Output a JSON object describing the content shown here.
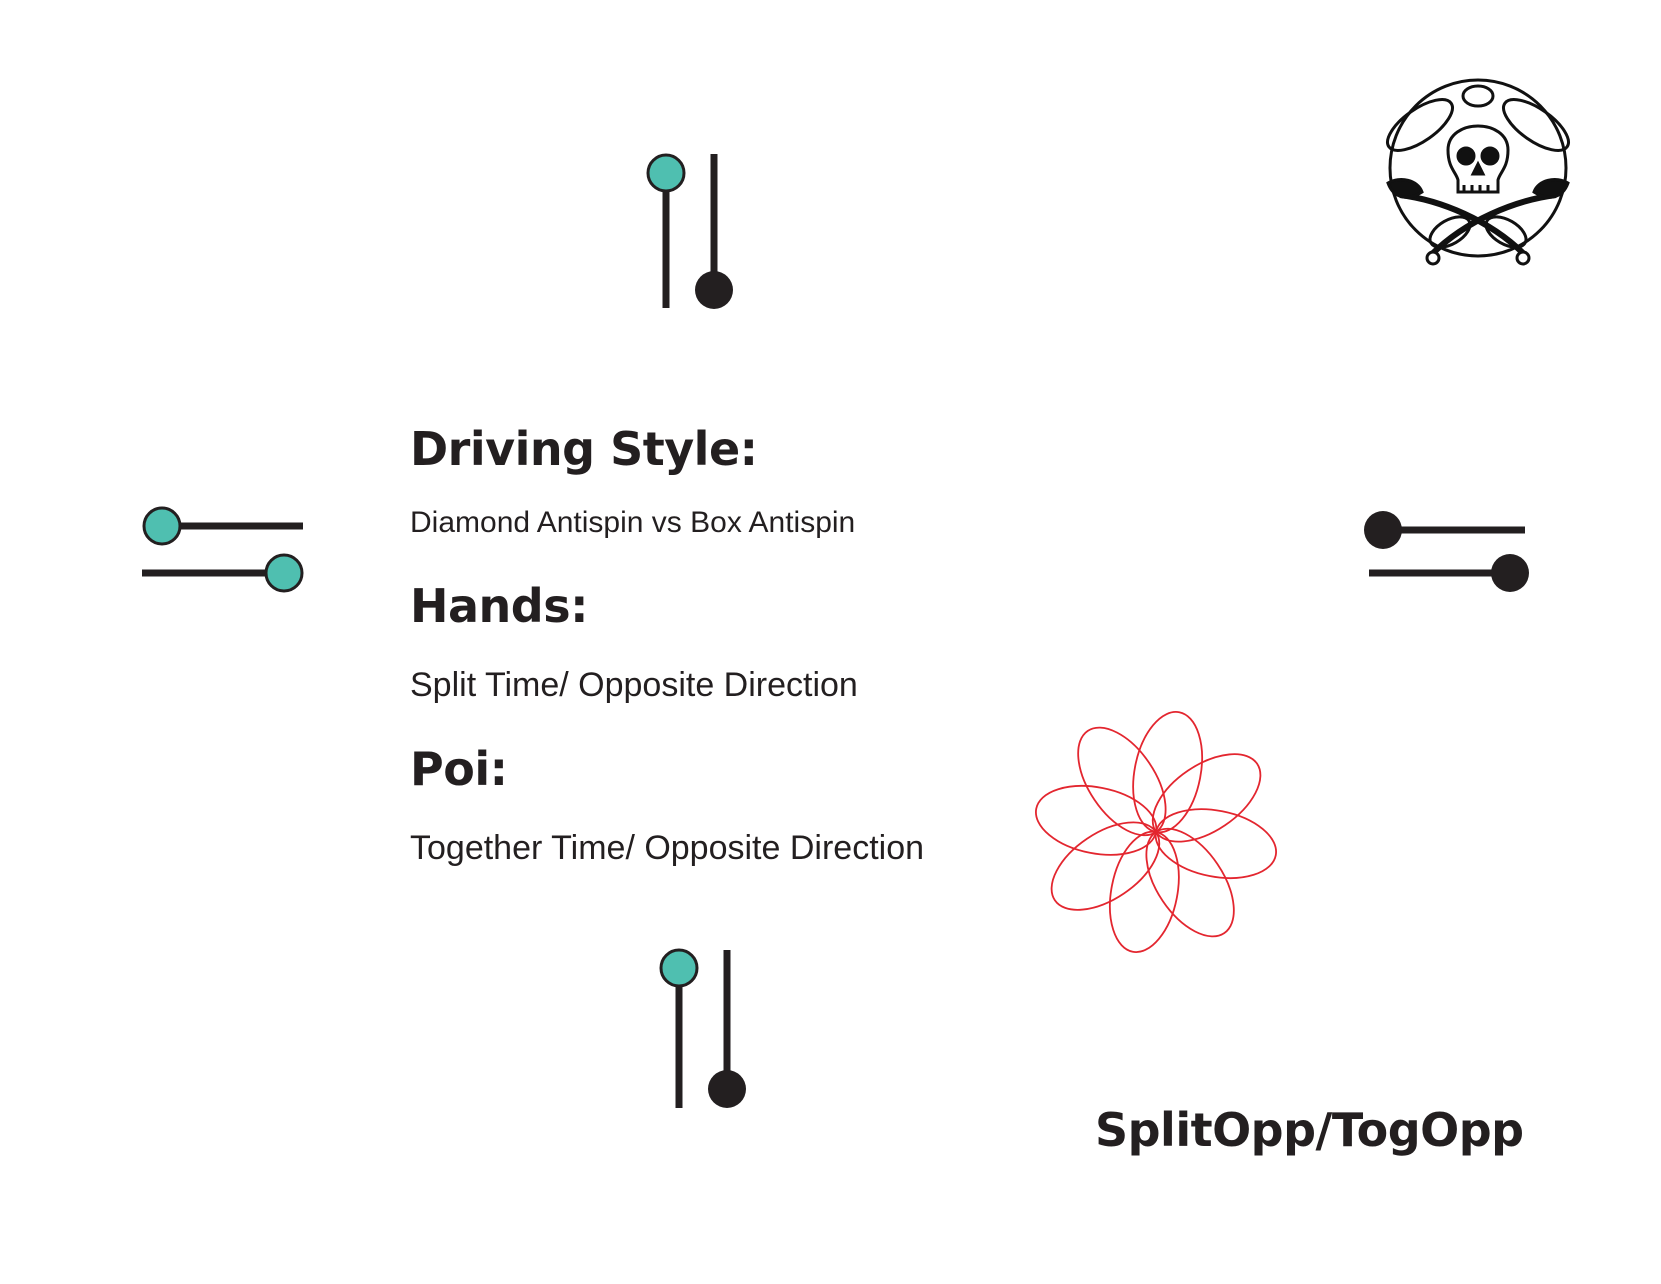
{
  "sections": [
    {
      "heading": "Driving Style:",
      "text": "Diamond Antispin vs  Box Antispin"
    },
    {
      "heading": "Hands:",
      "text": "Split Time/ Opposite Direction"
    },
    {
      "heading": "Poi:",
      "text": "Together Time/ Opposite Direction"
    }
  ],
  "pattern_name": "SplitOpp/TogOpp",
  "colors": {
    "teal": "#4fbfb0",
    "dark": "#231f20",
    "flower_red": "#e3262f"
  },
  "icons": {
    "top_diagram": "hand-poi-position-icon",
    "left_diagram": "hand-poi-position-icon",
    "right_diagram": "hand-poi-position-icon",
    "bottom_diagram": "hand-poi-position-icon",
    "logo": "skull-crossbones-logo",
    "flower": "antispin-flower-pattern-icon"
  },
  "flower_petals": 8
}
